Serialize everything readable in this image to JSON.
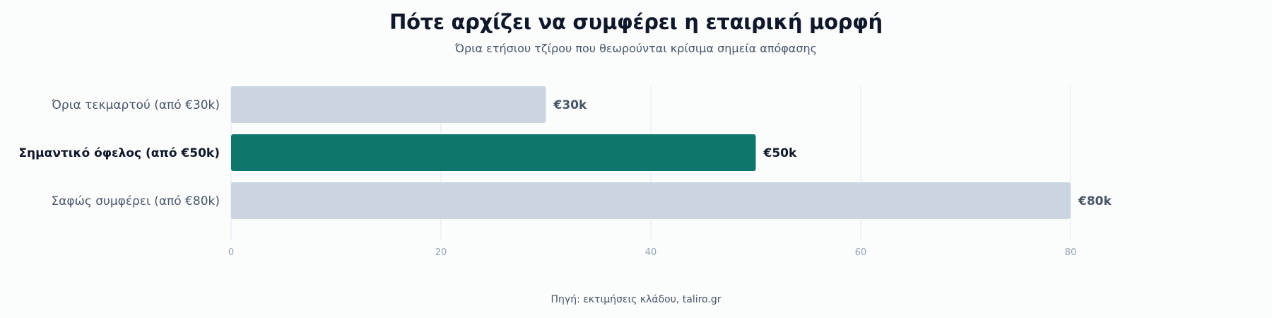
{
  "header": {
    "title": "Πότε αρχίζει να συμφέρει η εταιρική μορφή",
    "subtitle": "Όρια ετήσιου τζίρου που θεωρούνται κρίσιμα σημεία απόφασης"
  },
  "footer": {
    "source": "Πηγή: εκτιμήσεις κλάδου, taliro.gr"
  },
  "colors": {
    "highlight": "#0f766e",
    "default_bar": "#cbd5e1",
    "grid": "#e2e8f0",
    "label_dark": "#0f172a",
    "label_muted": "#475569"
  },
  "chart_data": {
    "type": "bar",
    "orientation": "horizontal",
    "categories": [
      "Όρια τεκμαρτού (από €30k)",
      "Σημαντικό όφελος (από €50k)",
      "Σαφώς συμφέρει (από €80k)"
    ],
    "values": [
      30,
      50,
      80
    ],
    "value_labels": [
      "€30k",
      "€50k",
      "€80k"
    ],
    "highlight_index": 1,
    "xlim": [
      0,
      80
    ],
    "xticks": [
      0,
      20,
      40,
      60,
      80
    ],
    "grid": true,
    "legend": false
  }
}
